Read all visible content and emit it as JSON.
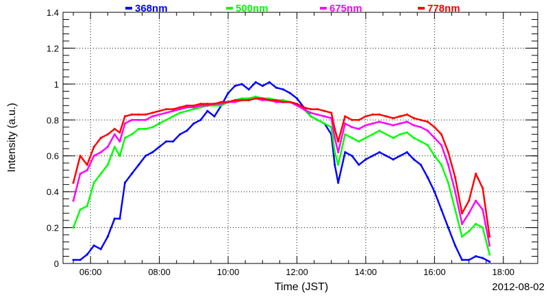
{
  "chart_data": {
    "type": "line",
    "xlabel": "Time (JST)",
    "ylabel": "Intensity (a.u.)",
    "date": "2012-08-02",
    "xlim": [
      5.2,
      19.0
    ],
    "ylim": [
      0,
      1.4
    ],
    "x_ticks": [
      6,
      8,
      10,
      12,
      14,
      16,
      18
    ],
    "x_tick_labels": [
      "06:00",
      "08:00",
      "10:00",
      "12:00",
      "14:00",
      "16:00",
      "18:00"
    ],
    "y_ticks": [
      0,
      0.2,
      0.4,
      0.6,
      0.8,
      1,
      1.2,
      1.4
    ],
    "y_tick_labels": [
      "0",
      "0.2",
      "0.4",
      "0.6",
      "0.8",
      "1",
      "1.2",
      "1.4"
    ],
    "grid": true,
    "legend_position": "top",
    "series": [
      {
        "name": "368nm",
        "color": "#0000ff",
        "x": [
          5.5,
          5.7,
          5.9,
          6.1,
          6.3,
          6.5,
          6.7,
          6.85,
          7.0,
          7.2,
          7.4,
          7.6,
          7.8,
          8.0,
          8.2,
          8.4,
          8.6,
          8.8,
          9.0,
          9.2,
          9.4,
          9.6,
          9.8,
          10.0,
          10.2,
          10.4,
          10.6,
          10.8,
          11.0,
          11.2,
          11.4,
          11.6,
          11.8,
          12.0,
          12.2,
          12.4,
          12.6,
          12.8,
          13.0,
          13.1,
          13.2,
          13.4,
          13.6,
          13.8,
          14.0,
          14.2,
          14.4,
          14.6,
          14.8,
          15.0,
          15.2,
          15.4,
          15.6,
          15.8,
          16.0,
          16.2,
          16.4,
          16.6,
          16.8,
          17.0,
          17.2,
          17.4,
          17.6
        ],
        "values": [
          0.02,
          0.02,
          0.05,
          0.1,
          0.08,
          0.15,
          0.25,
          0.25,
          0.45,
          0.5,
          0.55,
          0.6,
          0.62,
          0.65,
          0.68,
          0.68,
          0.72,
          0.74,
          0.78,
          0.8,
          0.85,
          0.82,
          0.88,
          0.95,
          0.99,
          1.0,
          0.97,
          1.01,
          0.99,
          1.01,
          0.98,
          0.97,
          0.95,
          0.92,
          0.87,
          0.82,
          0.8,
          0.78,
          0.72,
          0.55,
          0.45,
          0.62,
          0.6,
          0.55,
          0.58,
          0.6,
          0.62,
          0.6,
          0.58,
          0.6,
          0.62,
          0.58,
          0.55,
          0.48,
          0.4,
          0.3,
          0.2,
          0.1,
          0.02,
          0.02,
          0.04,
          0.03,
          0.01
        ]
      },
      {
        "name": "500nm",
        "color": "#00ff00",
        "x": [
          5.5,
          5.7,
          5.9,
          6.1,
          6.3,
          6.5,
          6.7,
          6.85,
          7.0,
          7.2,
          7.4,
          7.6,
          7.8,
          8.0,
          8.2,
          8.4,
          8.6,
          8.8,
          9.0,
          9.2,
          9.4,
          9.6,
          9.8,
          10.0,
          10.2,
          10.4,
          10.6,
          10.8,
          11.0,
          11.2,
          11.4,
          11.6,
          11.8,
          12.0,
          12.2,
          12.4,
          12.6,
          12.8,
          13.0,
          13.1,
          13.2,
          13.4,
          13.6,
          13.8,
          14.0,
          14.2,
          14.4,
          14.6,
          14.8,
          15.0,
          15.2,
          15.4,
          15.6,
          15.8,
          16.0,
          16.2,
          16.4,
          16.6,
          16.8,
          17.0,
          17.2,
          17.4,
          17.6
        ],
        "values": [
          0.2,
          0.3,
          0.32,
          0.45,
          0.5,
          0.55,
          0.65,
          0.6,
          0.7,
          0.72,
          0.75,
          0.75,
          0.76,
          0.78,
          0.8,
          0.82,
          0.84,
          0.85,
          0.86,
          0.87,
          0.88,
          0.88,
          0.88,
          0.9,
          0.91,
          0.92,
          0.92,
          0.93,
          0.92,
          0.92,
          0.91,
          0.91,
          0.9,
          0.89,
          0.86,
          0.82,
          0.8,
          0.78,
          0.76,
          0.62,
          0.55,
          0.72,
          0.7,
          0.68,
          0.7,
          0.72,
          0.74,
          0.72,
          0.7,
          0.72,
          0.73,
          0.7,
          0.68,
          0.66,
          0.6,
          0.55,
          0.45,
          0.3,
          0.15,
          0.18,
          0.22,
          0.2,
          0.05
        ]
      },
      {
        "name": "675nm",
        "color": "#ff00ff",
        "x": [
          5.5,
          5.7,
          5.9,
          6.1,
          6.3,
          6.5,
          6.7,
          6.85,
          7.0,
          7.2,
          7.4,
          7.6,
          7.8,
          8.0,
          8.2,
          8.4,
          8.6,
          8.8,
          9.0,
          9.2,
          9.4,
          9.6,
          9.8,
          10.0,
          10.2,
          10.4,
          10.6,
          10.8,
          11.0,
          11.2,
          11.4,
          11.6,
          11.8,
          12.0,
          12.2,
          12.4,
          12.6,
          12.8,
          13.0,
          13.1,
          13.2,
          13.4,
          13.6,
          13.8,
          14.0,
          14.2,
          14.4,
          14.6,
          14.8,
          15.0,
          15.2,
          15.4,
          15.6,
          15.8,
          16.0,
          16.2,
          16.4,
          16.6,
          16.8,
          17.0,
          17.2,
          17.4,
          17.6
        ],
        "values": [
          0.35,
          0.5,
          0.52,
          0.6,
          0.62,
          0.65,
          0.72,
          0.68,
          0.78,
          0.8,
          0.8,
          0.8,
          0.82,
          0.83,
          0.84,
          0.85,
          0.86,
          0.87,
          0.87,
          0.88,
          0.88,
          0.89,
          0.89,
          0.9,
          0.9,
          0.91,
          0.91,
          0.92,
          0.91,
          0.91,
          0.9,
          0.9,
          0.9,
          0.88,
          0.86,
          0.84,
          0.83,
          0.82,
          0.81,
          0.7,
          0.62,
          0.78,
          0.76,
          0.75,
          0.77,
          0.78,
          0.79,
          0.78,
          0.77,
          0.78,
          0.79,
          0.77,
          0.76,
          0.74,
          0.7,
          0.66,
          0.55,
          0.4,
          0.22,
          0.28,
          0.35,
          0.3,
          0.1
        ]
      },
      {
        "name": "778nm",
        "color": "#ff0000",
        "x": [
          5.5,
          5.7,
          5.9,
          6.1,
          6.3,
          6.5,
          6.7,
          6.85,
          7.0,
          7.2,
          7.4,
          7.6,
          7.8,
          8.0,
          8.2,
          8.4,
          8.6,
          8.8,
          9.0,
          9.2,
          9.4,
          9.6,
          9.8,
          10.0,
          10.2,
          10.4,
          10.6,
          10.8,
          11.0,
          11.2,
          11.4,
          11.6,
          11.8,
          12.0,
          12.2,
          12.4,
          12.6,
          12.8,
          13.0,
          13.1,
          13.2,
          13.4,
          13.6,
          13.8,
          14.0,
          14.2,
          14.4,
          14.6,
          14.8,
          15.0,
          15.2,
          15.4,
          15.6,
          15.8,
          16.0,
          16.2,
          16.4,
          16.6,
          16.8,
          17.0,
          17.2,
          17.4,
          17.6
        ],
        "values": [
          0.45,
          0.6,
          0.55,
          0.65,
          0.7,
          0.72,
          0.75,
          0.73,
          0.82,
          0.83,
          0.83,
          0.83,
          0.84,
          0.85,
          0.86,
          0.86,
          0.87,
          0.88,
          0.88,
          0.89,
          0.89,
          0.89,
          0.9,
          0.9,
          0.91,
          0.91,
          0.91,
          0.92,
          0.92,
          0.91,
          0.91,
          0.9,
          0.9,
          0.89,
          0.87,
          0.86,
          0.86,
          0.85,
          0.84,
          0.75,
          0.68,
          0.82,
          0.8,
          0.8,
          0.82,
          0.83,
          0.83,
          0.82,
          0.81,
          0.82,
          0.83,
          0.81,
          0.8,
          0.79,
          0.76,
          0.72,
          0.62,
          0.48,
          0.28,
          0.35,
          0.5,
          0.42,
          0.15
        ]
      }
    ]
  }
}
